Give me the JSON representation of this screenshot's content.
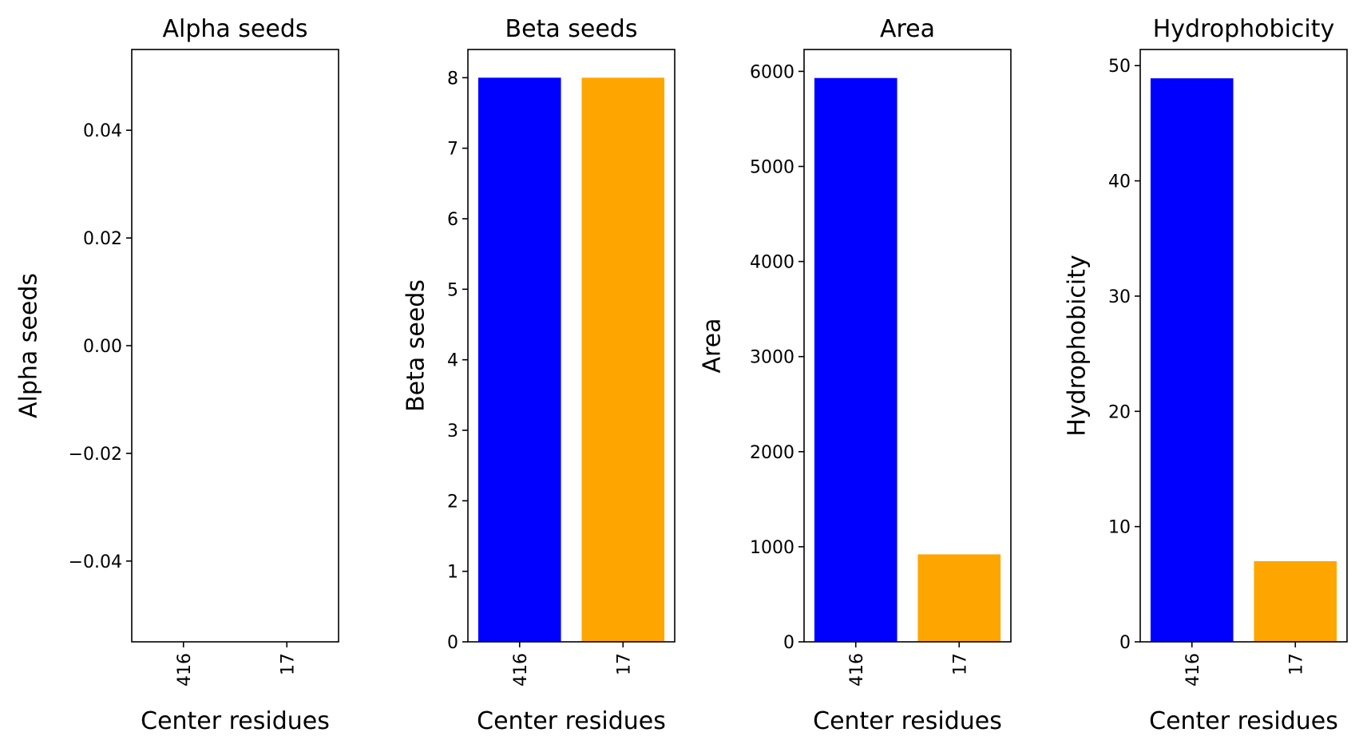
{
  "chart_data": [
    {
      "type": "bar",
      "title": "Alpha seeds",
      "xlabel": "Center residues",
      "ylabel": "Alpha seeds",
      "categories": [
        "416",
        "17"
      ],
      "values": [
        0,
        0
      ],
      "colors": [
        "#0000ff",
        "#ffa500"
      ],
      "ylim": [
        -0.055,
        0.055
      ],
      "yticks": [
        -0.04,
        -0.02,
        0.0,
        0.02,
        0.04
      ],
      "ytick_labels": [
        "−0.04",
        "−0.02",
        "0.00",
        "0.02",
        "0.04"
      ]
    },
    {
      "type": "bar",
      "title": "Beta seeds",
      "xlabel": "Center residues",
      "ylabel": "Beta seeds",
      "categories": [
        "416",
        "17"
      ],
      "values": [
        8,
        8
      ],
      "colors": [
        "#0000ff",
        "#ffa500"
      ],
      "ylim": [
        0,
        8.4
      ],
      "yticks": [
        0,
        1,
        2,
        3,
        4,
        5,
        6,
        7,
        8
      ],
      "ytick_labels": [
        "0",
        "1",
        "2",
        "3",
        "4",
        "5",
        "6",
        "7",
        "8"
      ]
    },
    {
      "type": "bar",
      "title": "Area",
      "xlabel": "Center residues",
      "ylabel": "Area",
      "categories": [
        "416",
        "17"
      ],
      "values": [
        5930,
        920
      ],
      "colors": [
        "#0000ff",
        "#ffa500"
      ],
      "ylim": [
        0,
        6230
      ],
      "yticks": [
        0,
        1000,
        2000,
        3000,
        4000,
        5000,
        6000
      ],
      "ytick_labels": [
        "0",
        "1000",
        "2000",
        "3000",
        "4000",
        "5000",
        "6000"
      ]
    },
    {
      "type": "bar",
      "title": "Hydrophobicity",
      "xlabel": "Center residues",
      "ylabel": "Hydrophobicity",
      "categories": [
        "416",
        "17"
      ],
      "values": [
        48.9,
        7.0
      ],
      "colors": [
        "#0000ff",
        "#ffa500"
      ],
      "ylim": [
        0,
        51.4
      ],
      "yticks": [
        0,
        10,
        20,
        30,
        40,
        50
      ],
      "ytick_labels": [
        "0",
        "10",
        "20",
        "30",
        "40",
        "50"
      ]
    }
  ]
}
